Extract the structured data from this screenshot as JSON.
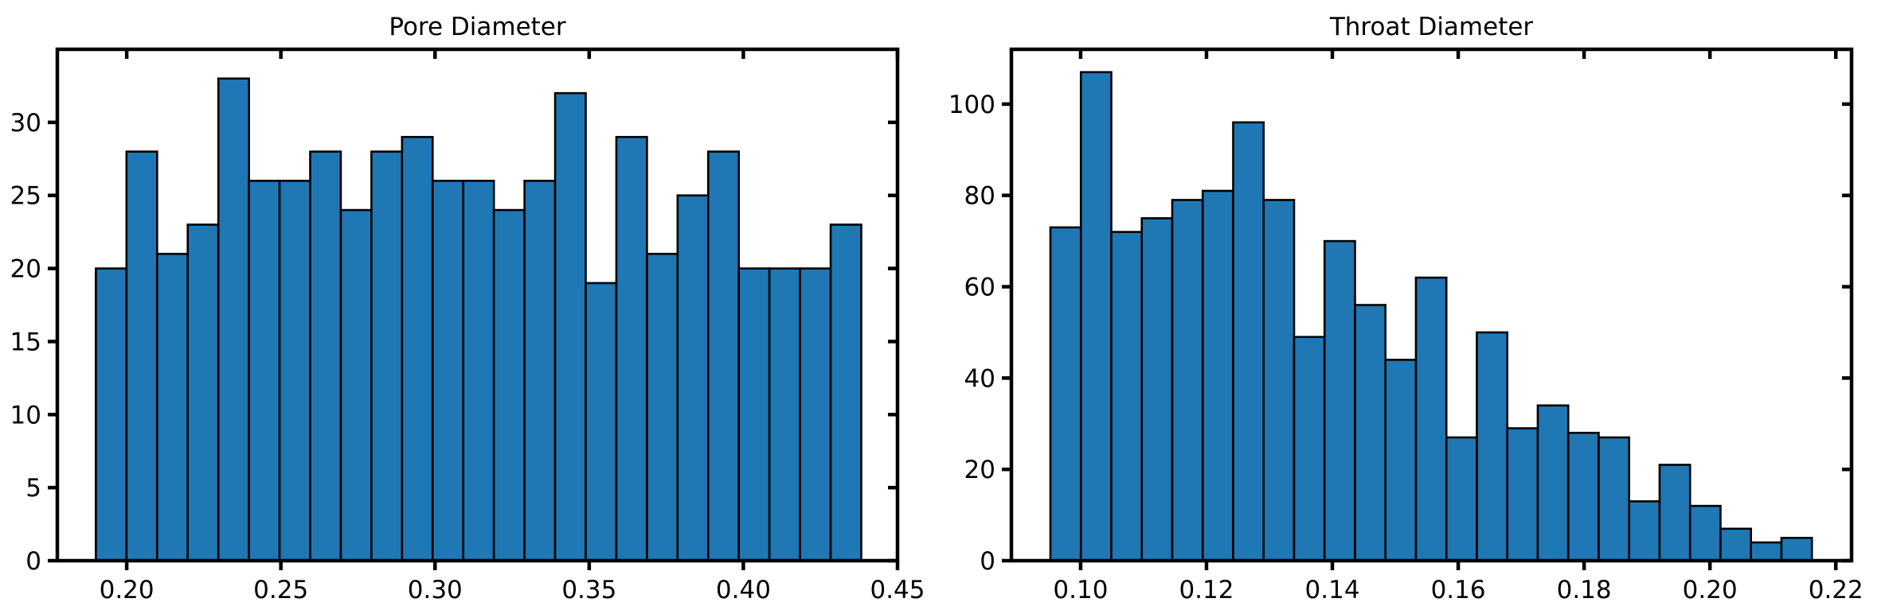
{
  "chart_data": [
    {
      "type": "bar",
      "title": "Pore Diameter",
      "xlabel": "",
      "ylabel": "",
      "xlim": [
        0.1775,
        0.45
      ],
      "ylim": [
        0,
        35
      ],
      "xticks": [
        "0.20",
        "0.25",
        "0.30",
        "0.35",
        "0.40",
        "0.45"
      ],
      "yticks": [
        "0",
        "5",
        "10",
        "15",
        "20",
        "25",
        "30"
      ],
      "bin_start": 0.19,
      "bin_width": 0.00993,
      "values": [
        20,
        28,
        21,
        23,
        33,
        26,
        26,
        28,
        24,
        28,
        29,
        26,
        26,
        24,
        26,
        32,
        19,
        29,
        21,
        25,
        28,
        20,
        20,
        20,
        23
      ],
      "bar_color": "#1f77b4",
      "edge_color": "#000000",
      "grid": false
    },
    {
      "type": "bar",
      "title": "Throat Diameter",
      "xlabel": "",
      "ylabel": "",
      "xlim": [
        0.089,
        0.2225
      ],
      "ylim": [
        0,
        112
      ],
      "xticks": [
        "0.10",
        "0.12",
        "0.14",
        "0.16",
        "0.18",
        "0.20",
        "0.22"
      ],
      "yticks": [
        "0",
        "20",
        "40",
        "60",
        "80",
        "100"
      ],
      "bin_start": 0.0952,
      "bin_width": 0.00484,
      "values": [
        73,
        107,
        72,
        75,
        79,
        81,
        96,
        79,
        49,
        70,
        56,
        44,
        62,
        27,
        50,
        29,
        34,
        28,
        27,
        13,
        21,
        12,
        7,
        4,
        5
      ],
      "bar_color": "#1f77b4",
      "edge_color": "#000000",
      "grid": false
    }
  ]
}
